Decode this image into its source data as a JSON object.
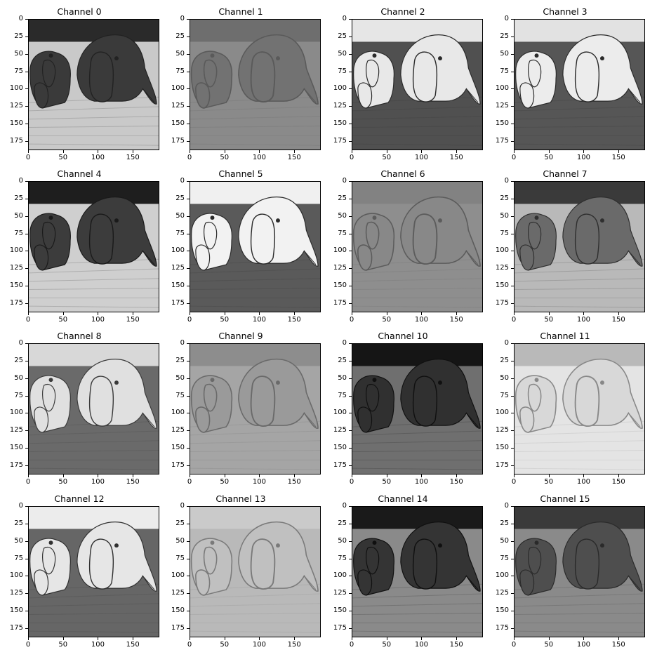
{
  "figure": {
    "panels": [
      {
        "title": "Channel 0"
      },
      {
        "title": "Channel 1"
      },
      {
        "title": "Channel 2"
      },
      {
        "title": "Channel 3"
      },
      {
        "title": "Channel 4"
      },
      {
        "title": "Channel 5"
      },
      {
        "title": "Channel 6"
      },
      {
        "title": "Channel 7"
      },
      {
        "title": "Channel 8"
      },
      {
        "title": "Channel 9"
      },
      {
        "title": "Channel 10"
      },
      {
        "title": "Channel 11"
      },
      {
        "title": "Channel 12"
      },
      {
        "title": "Channel 13"
      },
      {
        "title": "Channel 14"
      },
      {
        "title": "Channel 15"
      }
    ],
    "x_ticks": [
      "0",
      "50",
      "100",
      "150"
    ],
    "y_ticks": [
      "0",
      "25",
      "50",
      "75",
      "100",
      "125",
      "150",
      "175"
    ],
    "palette": {
      "background": "#ffffff",
      "axis": "#000000"
    }
  },
  "render": {
    "styles": [
      {
        "bg": "#c9c9c9",
        "top": "#2a2a2a",
        "fg": "#3a3a3a",
        "edge": "#222222",
        "mode": "inv"
      },
      {
        "bg": "#8a8a8a",
        "top": "#6e6e6e",
        "fg": "#727272",
        "edge": "#5a5a5a",
        "mode": "edge"
      },
      {
        "bg": "#505050",
        "top": "#e6e6e6",
        "fg": "#e8e8e8",
        "edge": "#2a2a2a",
        "mode": "pos"
      },
      {
        "bg": "#565656",
        "top": "#e2e2e2",
        "fg": "#ececec",
        "edge": "#2a2a2a",
        "mode": "pos"
      },
      {
        "bg": "#cfcfcf",
        "top": "#1e1e1e",
        "fg": "#3c3c3c",
        "edge": "#1a1a1a",
        "mode": "inv"
      },
      {
        "bg": "#5a5a5a",
        "top": "#f0f0f0",
        "fg": "#f2f2f2",
        "edge": "#2a2a2a",
        "mode": "pos"
      },
      {
        "bg": "#8e8e8e",
        "top": "#828282",
        "fg": "#888888",
        "edge": "#5c5c5c",
        "mode": "edge"
      },
      {
        "bg": "#b9b9b9",
        "top": "#3a3a3a",
        "fg": "#6a6a6a",
        "edge": "#2f2f2f",
        "mode": "inv"
      },
      {
        "bg": "#6a6a6a",
        "top": "#d8d8d8",
        "fg": "#e0e0e0",
        "edge": "#3a3a3a",
        "mode": "pos"
      },
      {
        "bg": "#a5a5a5",
        "top": "#8d8d8d",
        "fg": "#9a9a9a",
        "edge": "#6a6a6a",
        "mode": "edge"
      },
      {
        "bg": "#6f6f6f",
        "top": "#151515",
        "fg": "#303030",
        "edge": "#101010",
        "mode": "inv"
      },
      {
        "bg": "#e4e4e4",
        "top": "#b9b9b9",
        "fg": "#d8d8d8",
        "edge": "#888888",
        "mode": "edge"
      },
      {
        "bg": "#666666",
        "top": "#ececec",
        "fg": "#e6e6e6",
        "edge": "#303030",
        "mode": "pos"
      },
      {
        "bg": "#b9b9b9",
        "top": "#cacaca",
        "fg": "#c0c0c0",
        "edge": "#7a7a7a",
        "mode": "edge"
      },
      {
        "bg": "#8a8a8a",
        "top": "#1a1a1a",
        "fg": "#343434",
        "edge": "#101010",
        "mode": "inv"
      },
      {
        "bg": "#8a8a8a",
        "top": "#3a3a3a",
        "fg": "#4e4e4e",
        "edge": "#2a2a2a",
        "mode": "inv"
      }
    ]
  }
}
